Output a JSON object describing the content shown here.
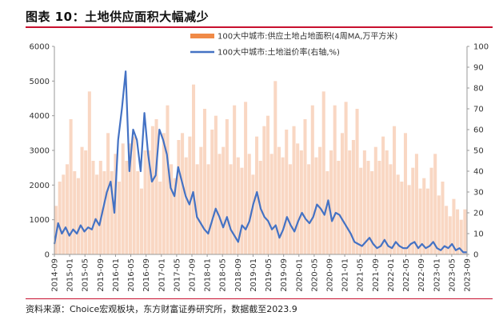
{
  "page": {
    "title": "图表 10：土地供应面积大幅减少",
    "source": "资料来源：Choice宏观板块，东方财富证券研究所，数据截至2023.9"
  },
  "colors": {
    "area_fill": "#f9d7c3",
    "area_swatch": "#f08a47",
    "line": "#4472c4",
    "axis": "#999999",
    "rule": "#c8102e"
  },
  "chart_data": {
    "type": "area+line",
    "legend": [
      {
        "name": "100大中城市:供应土地占地面积(4周MA,万平方米)",
        "kind": "area",
        "axis": "left"
      },
      {
        "name": "100大中城市:土地溢价率(右轴,%)",
        "kind": "line",
        "axis": "right"
      }
    ],
    "legend_position": "top-right",
    "grid": false,
    "x_ticks": [
      "2014-09",
      "2015-01",
      "2015-05",
      "2015-09",
      "2016-01",
      "2016-05",
      "2016-09",
      "2017-01",
      "2017-05",
      "2017-09",
      "2018-01",
      "2018-05",
      "2018-09",
      "2019-01",
      "2019-05",
      "2019-09",
      "2020-01",
      "2020-05",
      "2020-09",
      "2021-01",
      "2021-05",
      "2021-09",
      "2022-01",
      "2022-05",
      "2022-09",
      "2023-01",
      "2023-05",
      "2023-09"
    ],
    "y_left": {
      "min": 0,
      "max": 6000,
      "ticks": [
        "0",
        "1000",
        "2000",
        "3000",
        "4000",
        "5000",
        "6000"
      ]
    },
    "y_right": {
      "min": 0,
      "max": 100,
      "ticks": [
        "0",
        "10",
        "20",
        "30",
        "40",
        "50",
        "60",
        "70",
        "80",
        "90",
        "100"
      ]
    },
    "area_series": {
      "name": "100大中城市:供应土地占地面积(4周MA,万平方米)",
      "values": [
        1400,
        2100,
        2300,
        2600,
        3900,
        2400,
        2200,
        3100,
        3000,
        4700,
        2700,
        2300,
        2700,
        2400,
        3500,
        2400,
        2900,
        2100,
        3200,
        2700,
        3200,
        3400,
        2400,
        1900,
        3000,
        3000,
        3700,
        3900,
        2100,
        3500,
        4300,
        2600,
        2200,
        3300,
        3500,
        2800,
        3400,
        4900,
        2600,
        3100,
        4200,
        2600,
        3600,
        4000,
        2900,
        3100,
        3900,
        2600,
        4300,
        2800,
        2500,
        4400,
        2900,
        2300,
        3400,
        2700,
        3700,
        4000,
        2900,
        5000,
        3100,
        2800,
        3600,
        2600,
        3700,
        3200,
        3000,
        3900,
        2600,
        4300,
        2800,
        3100,
        4700,
        2400,
        3000,
        4300,
        2700,
        3500,
        4400,
        3000,
        3300,
        4200,
        2500,
        3000,
        2700,
        2400,
        3100,
        2700,
        3400,
        3000,
        2600,
        3700,
        2300,
        2100,
        3500,
        2000,
        2500,
        2900,
        1900,
        2200,
        1900,
        2500,
        2900,
        1700,
        2100,
        1400,
        1100,
        1600,
        1300,
        1000,
        1300
      ]
    },
    "line_series": {
      "name": "100大中城市:土地溢价率(右轴,%)",
      "values": [
        5,
        15,
        10,
        13,
        9,
        12,
        10,
        14,
        11,
        13,
        12,
        17,
        14,
        22,
        30,
        35,
        20,
        55,
        70,
        88,
        40,
        60,
        55,
        40,
        68,
        48,
        35,
        38,
        60,
        55,
        48,
        32,
        28,
        42,
        35,
        28,
        24,
        30,
        18,
        15,
        12,
        10,
        16,
        22,
        18,
        13,
        18,
        12,
        9,
        6,
        14,
        12,
        16,
        24,
        30,
        22,
        18,
        16,
        12,
        14,
        8,
        12,
        18,
        14,
        11,
        16,
        20,
        17,
        15,
        18,
        24,
        22,
        19,
        26,
        16,
        20,
        19,
        16,
        13,
        10,
        6,
        5,
        4,
        6,
        8,
        5,
        3,
        4,
        7,
        4,
        3,
        6,
        4,
        3,
        3,
        5,
        6,
        3,
        5,
        3,
        4,
        6,
        3,
        2,
        4,
        3,
        5,
        2,
        3,
        1,
        1
      ]
    }
  }
}
